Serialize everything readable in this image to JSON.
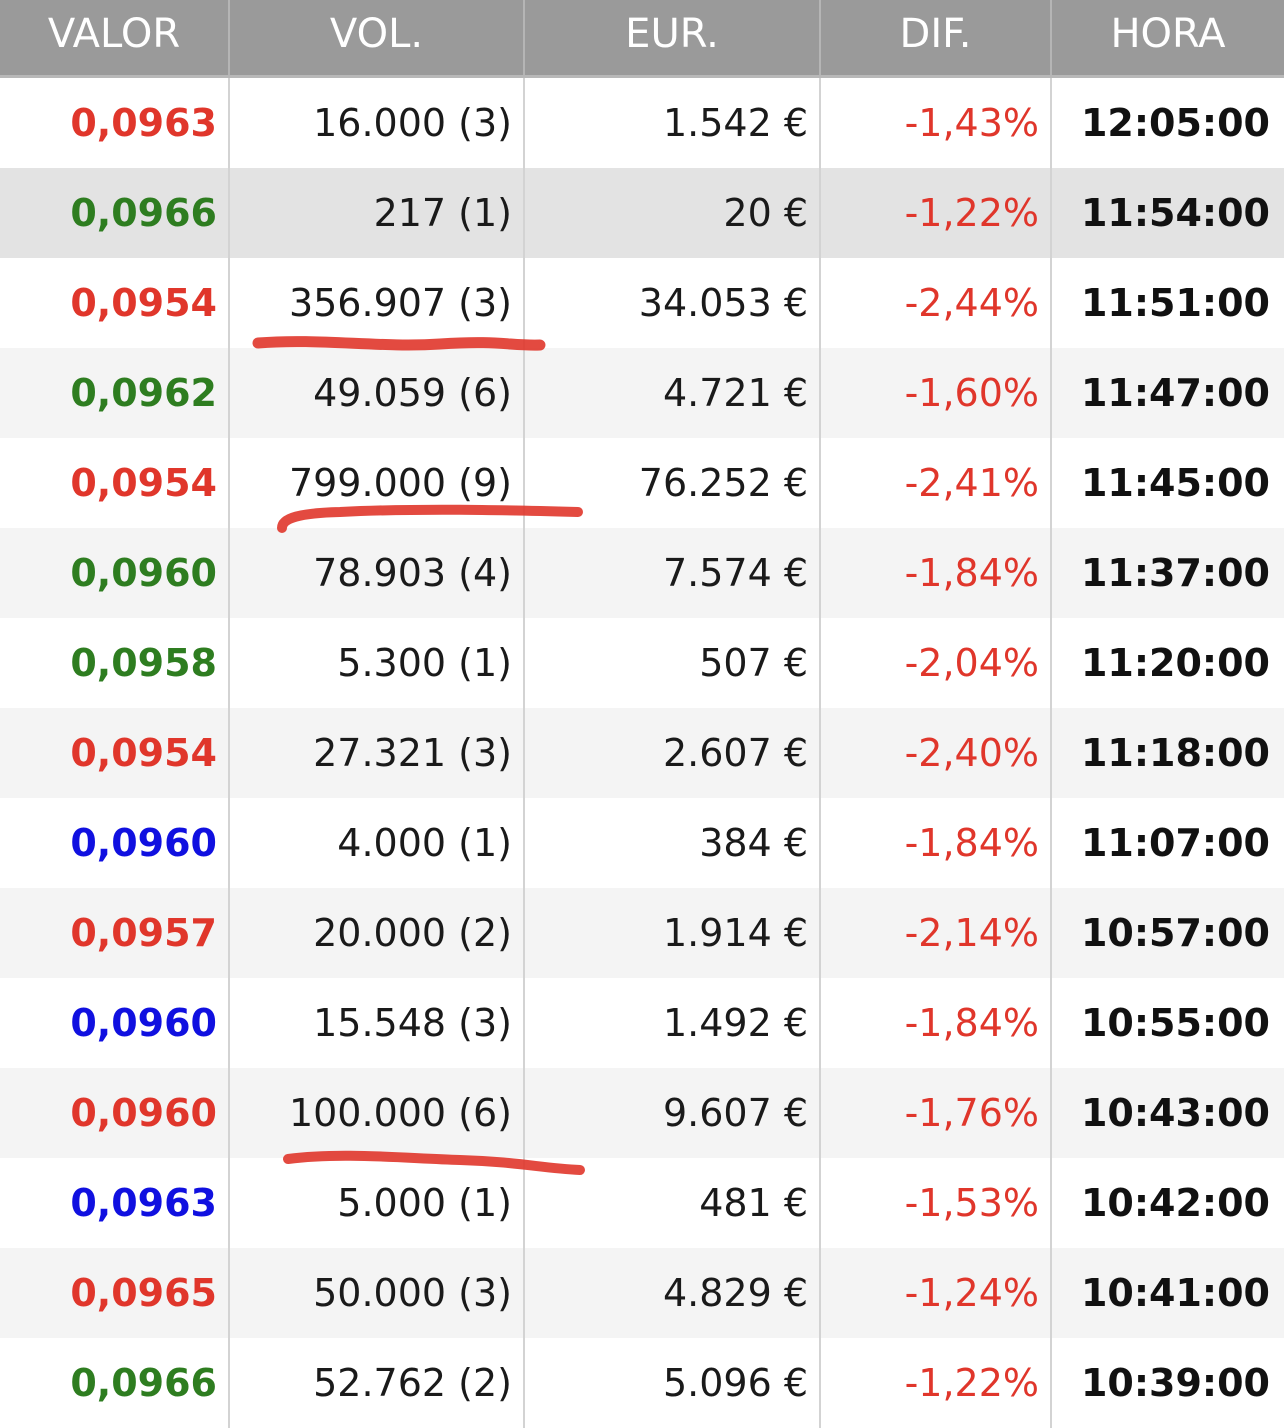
{
  "header": {
    "valor": "VALOR",
    "vol": "VOL.",
    "eur": "EUR.",
    "dif": "DIF.",
    "hora": "HORA"
  },
  "colors": {
    "header_bg": "#9a9a9a",
    "up": "#2e7d20",
    "down": "#e0362b",
    "neutral": "#1010e0",
    "annotation": "#e0362b"
  },
  "rows": [
    {
      "valor": "0,0963",
      "trend": "red",
      "vol": "16.000 (3)",
      "eur": "1.542 €",
      "dif": "-1,43%",
      "hora": "12:05:00"
    },
    {
      "valor": "0,0966",
      "trend": "green",
      "vol": "217 (1)",
      "eur": "20 €",
      "dif": "-1,22%",
      "hora": "11:54:00"
    },
    {
      "valor": "0,0954",
      "trend": "red",
      "vol": "356.907 (3)",
      "eur": "34.053 €",
      "dif": "-2,44%",
      "hora": "11:51:00"
    },
    {
      "valor": "0,0962",
      "trend": "green",
      "vol": "49.059 (6)",
      "eur": "4.721 €",
      "dif": "-1,60%",
      "hora": "11:47:00"
    },
    {
      "valor": "0,0954",
      "trend": "red",
      "vol": "799.000 (9)",
      "eur": "76.252 €",
      "dif": "-2,41%",
      "hora": "11:45:00"
    },
    {
      "valor": "0,0960",
      "trend": "green",
      "vol": "78.903 (4)",
      "eur": "7.574 €",
      "dif": "-1,84%",
      "hora": "11:37:00"
    },
    {
      "valor": "0,0958",
      "trend": "green",
      "vol": "5.300 (1)",
      "eur": "507 €",
      "dif": "-2,04%",
      "hora": "11:20:00"
    },
    {
      "valor": "0,0954",
      "trend": "red",
      "vol": "27.321 (3)",
      "eur": "2.607 €",
      "dif": "-2,40%",
      "hora": "11:18:00"
    },
    {
      "valor": "0,0960",
      "trend": "blue",
      "vol": "4.000 (1)",
      "eur": "384 €",
      "dif": "-1,84%",
      "hora": "11:07:00"
    },
    {
      "valor": "0,0957",
      "trend": "red",
      "vol": "20.000 (2)",
      "eur": "1.914 €",
      "dif": "-2,14%",
      "hora": "10:57:00"
    },
    {
      "valor": "0,0960",
      "trend": "blue",
      "vol": "15.548 (3)",
      "eur": "1.492 €",
      "dif": "-1,84%",
      "hora": "10:55:00"
    },
    {
      "valor": "0,0960",
      "trend": "red",
      "vol": "100.000 (6)",
      "eur": "9.607 €",
      "dif": "-1,76%",
      "hora": "10:43:00"
    },
    {
      "valor": "0,0963",
      "trend": "blue",
      "vol": "5.000 (1)",
      "eur": "481 €",
      "dif": "-1,53%",
      "hora": "10:42:00"
    },
    {
      "valor": "0,0965",
      "trend": "red",
      "vol": "50.000 (3)",
      "eur": "4.829 €",
      "dif": "-1,24%",
      "hora": "10:41:00"
    },
    {
      "valor": "0,0966",
      "trend": "green",
      "vol": "52.762 (2)",
      "eur": "5.096 €",
      "dif": "-1,22%",
      "hora": "10:39:00"
    }
  ]
}
